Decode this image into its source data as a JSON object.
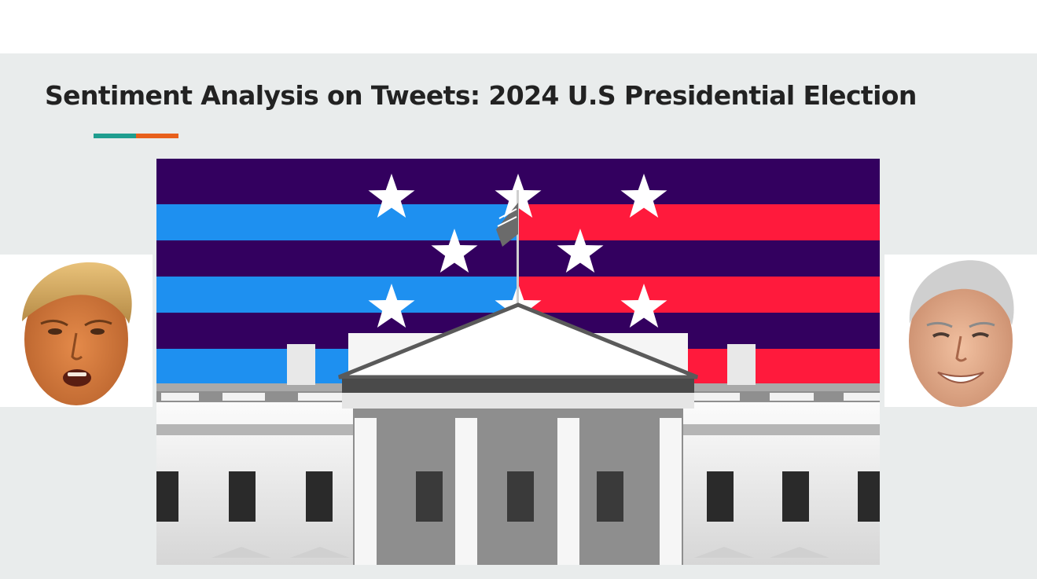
{
  "slide": {
    "title": "Sentiment Analysis on Tweets: 2024 U.S Presidential Election",
    "accent_colors": [
      "#1f9e8f",
      "#e8601c"
    ]
  },
  "banner": {
    "image": "white-house-flag-illustration",
    "colors": {
      "night": "#33005f",
      "blue": "#1e90f0",
      "red": "#ff1a3c",
      "star": "#ffffff"
    }
  },
  "faces": {
    "left": {
      "image": "candidate-portrait-left"
    },
    "right": {
      "image": "candidate-portrait-right"
    }
  }
}
